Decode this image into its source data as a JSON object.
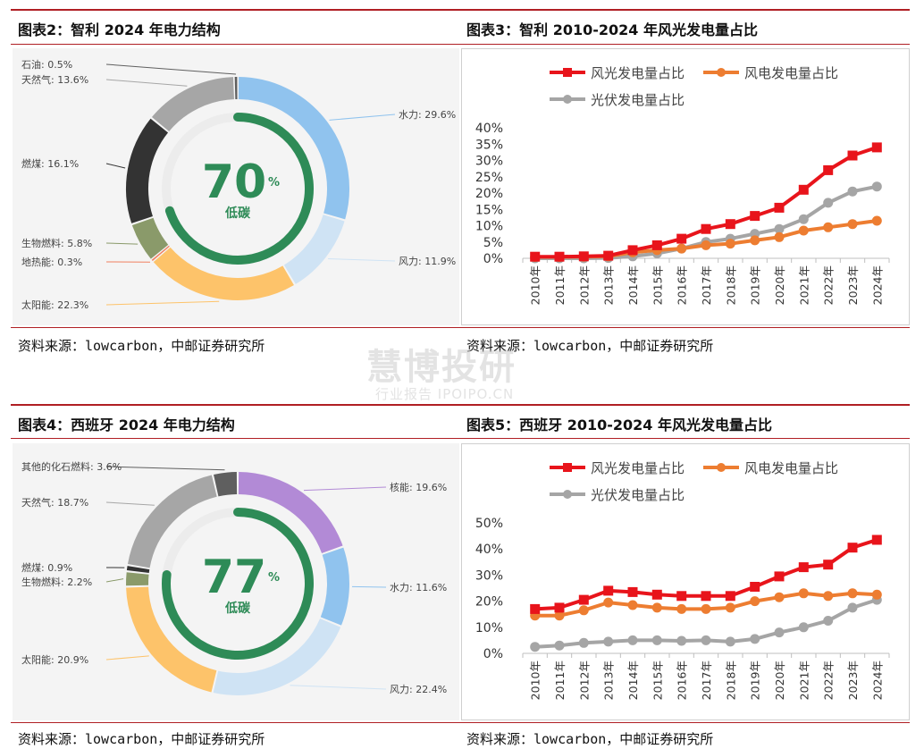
{
  "captions": {
    "fig2": "图表2：智利 2024 年电力结构",
    "fig3": "图表3：智利 2010-2024 年风光发电量占比",
    "fig4": "图表4：西班牙 2024 年电力结构",
    "fig5": "图表5：西班牙 2010-2024 年风光发电量占比"
  },
  "sources": {
    "s2": "资料来源：lowcarbon，中邮证券研究所",
    "s3": "资料来源：lowcarbon，中邮证券研究所",
    "s4": "资料来源：lowcarbon，中邮证券研究所",
    "s5": "资料来源：lowcarbon，中邮证券研究所"
  },
  "watermark": {
    "main": "慧博投研",
    "sub": "行业报告 IPOIPO.CN"
  },
  "colors": {
    "accent": "#b01f24",
    "wind_solar": "#e8141b",
    "wind": "#ed7d31",
    "solar": "#a5a5a5",
    "low_carbon": "#2e8b57"
  },
  "chart_data": [
    {
      "id": "fig2",
      "type": "pie",
      "title": "",
      "center_value": "70",
      "center_unit": "%",
      "center_label": "低碳",
      "center_ring_fraction": 0.7,
      "slices": [
        {
          "name": "水力",
          "value": 29.6,
          "label": "水力: 29.6%",
          "color": "#90c3ee"
        },
        {
          "name": "风力",
          "value": 11.9,
          "label": "风力: 11.9%",
          "color": "#cfe3f4"
        },
        {
          "name": "太阳能",
          "value": 22.3,
          "label": "太阳能: 22.3%",
          "color": "#fdc36a"
        },
        {
          "name": "地热能",
          "value": 0.3,
          "label": "地热能: 0.3%",
          "color": "#f08060"
        },
        {
          "name": "生物燃料",
          "value": 5.8,
          "label": "生物燃料: 5.8%",
          "color": "#8a9a6a"
        },
        {
          "name": "燃煤",
          "value": 16.1,
          "label": "燃煤: 16.1%",
          "color": "#333333"
        },
        {
          "name": "天然气",
          "value": 13.6,
          "label": "天然气: 13.6%",
          "color": "#a6a6a6"
        },
        {
          "name": "石油",
          "value": 0.5,
          "label": "石油: 0.5%",
          "color": "#5f5f5f"
        }
      ]
    },
    {
      "id": "fig3",
      "type": "line",
      "title": "",
      "categories": [
        "2010年",
        "2011年",
        "2012年",
        "2013年",
        "2014年",
        "2015年",
        "2016年",
        "2017年",
        "2018年",
        "2019年",
        "2020年",
        "2021年",
        "2022年",
        "2023年",
        "2024年"
      ],
      "ylim": [
        0,
        40
      ],
      "yticks": [
        "0%",
        "5%",
        "10%",
        "15%",
        "20%",
        "25%",
        "30%",
        "35%",
        "40%"
      ],
      "legend": [
        "风光发电量占比",
        "风电发电量占比",
        "光伏发电量占比"
      ],
      "series": [
        {
          "name": "风光发电量占比",
          "color": "#e8141b",
          "marker": "square",
          "values": [
            0.5,
            0.5,
            0.6,
            0.8,
            2.5,
            4.0,
            6.0,
            9.0,
            10.5,
            13.0,
            15.5,
            21.0,
            27.0,
            31.5,
            34.0
          ]
        },
        {
          "name": "风电发电量占比",
          "color": "#ed7d31",
          "marker": "circle",
          "values": [
            0.4,
            0.4,
            0.5,
            0.6,
            1.8,
            2.5,
            3.0,
            4.0,
            4.5,
            5.5,
            6.5,
            8.5,
            9.5,
            10.5,
            11.5
          ]
        },
        {
          "name": "光伏发电量占比",
          "color": "#a5a5a5",
          "marker": "circle",
          "values": [
            0.0,
            0.0,
            0.0,
            0.1,
            0.6,
            1.5,
            3.0,
            5.0,
            6.0,
            7.5,
            9.0,
            12.0,
            17.0,
            20.5,
            22.0
          ]
        }
      ]
    },
    {
      "id": "fig4",
      "type": "pie",
      "title": "",
      "center_value": "77",
      "center_unit": "%",
      "center_label": "低碳",
      "center_ring_fraction": 0.77,
      "slices": [
        {
          "name": "核能",
          "value": 19.6,
          "label": "核能: 19.6%",
          "color": "#b28ad6"
        },
        {
          "name": "水力",
          "value": 11.6,
          "label": "水力: 11.6%",
          "color": "#90c3ee"
        },
        {
          "name": "风力",
          "value": 22.4,
          "label": "风力: 22.4%",
          "color": "#cfe3f4"
        },
        {
          "name": "太阳能",
          "value": 20.9,
          "label": "太阳能: 20.9%",
          "color": "#fdc36a"
        },
        {
          "name": "生物燃料",
          "value": 2.2,
          "label": "生物燃料: 2.2%",
          "color": "#8a9a6a"
        },
        {
          "name": "燃煤",
          "value": 0.9,
          "label": "燃煤: 0.9%",
          "color": "#333333"
        },
        {
          "name": "天然气",
          "value": 18.7,
          "label": "天然气: 18.7%",
          "color": "#a6a6a6"
        },
        {
          "name": "其他的化石燃料",
          "value": 3.6,
          "label": "其他的化石燃料: 3.6%",
          "color": "#5f5f5f"
        }
      ]
    },
    {
      "id": "fig5",
      "type": "line",
      "title": "",
      "categories": [
        "2010年",
        "2011年",
        "2012年",
        "2013年",
        "2014年",
        "2015年",
        "2016年",
        "2017年",
        "2018年",
        "2019年",
        "2020年",
        "2021年",
        "2022年",
        "2023年",
        "2024年"
      ],
      "ylim": [
        0,
        50
      ],
      "yticks": [
        "0%",
        "10%",
        "20%",
        "30%",
        "40%",
        "50%"
      ],
      "legend": [
        "风光发电量占比",
        "风电发电量占比",
        "光伏发电量占比"
      ],
      "series": [
        {
          "name": "风光发电量占比",
          "color": "#e8141b",
          "marker": "square",
          "values": [
            17.0,
            17.5,
            20.5,
            24.0,
            23.5,
            22.5,
            22.0,
            22.0,
            22.0,
            25.5,
            29.5,
            33.0,
            34.0,
            40.5,
            43.5
          ]
        },
        {
          "name": "风电发电量占比",
          "color": "#ed7d31",
          "marker": "circle",
          "values": [
            14.5,
            14.5,
            16.5,
            19.5,
            18.5,
            17.5,
            17.0,
            17.0,
            17.5,
            20.0,
            21.5,
            23.0,
            22.0,
            23.0,
            22.5
          ]
        },
        {
          "name": "光伏发电量占比",
          "color": "#a5a5a5",
          "marker": "circle",
          "values": [
            2.5,
            3.0,
            4.0,
            4.5,
            5.0,
            5.0,
            4.8,
            5.0,
            4.5,
            5.5,
            8.0,
            10.0,
            12.5,
            17.5,
            20.5
          ]
        }
      ]
    }
  ]
}
